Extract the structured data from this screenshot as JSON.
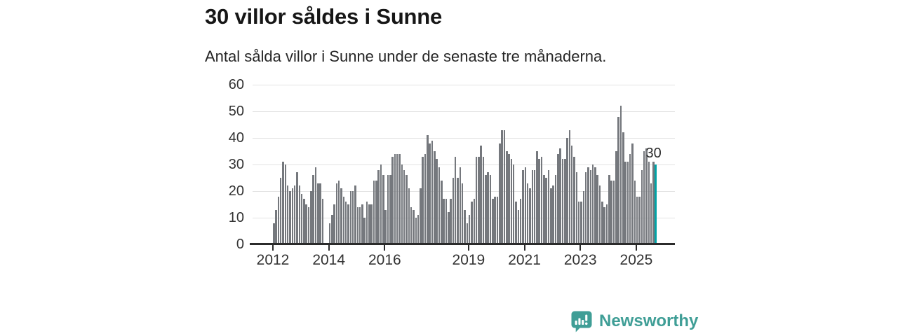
{
  "header": {
    "title": "30 villor såldes i Sunne",
    "subtitle": "Antal sålda villor i Sunne under de senaste tre månaderna."
  },
  "chart_data": {
    "type": "bar",
    "title": "30 villor såldes i Sunne",
    "subtitle": "Antal sålda villor i Sunne under de senaste tre månaderna.",
    "x_start_year": 2012,
    "x_frequency": "monthly",
    "values": [
      8,
      13,
      18,
      25,
      31,
      30,
      22,
      20,
      21,
      22,
      27,
      22,
      19,
      17,
      15,
      14,
      20,
      26,
      29,
      23,
      23,
      17,
      0,
      0,
      8,
      11,
      15,
      23,
      24,
      21,
      18,
      16,
      15,
      20,
      20,
      22,
      14,
      14,
      15,
      10,
      16,
      15,
      15,
      24,
      24,
      28,
      30,
      26,
      13,
      26,
      26,
      33,
      34,
      34,
      34,
      30,
      28,
      26,
      21,
      14,
      13,
      10,
      11,
      21,
      33,
      34,
      41,
      38,
      39,
      35,
      32,
      29,
      24,
      17,
      17,
      12,
      17,
      25,
      33,
      25,
      29,
      23,
      13,
      8,
      11,
      16,
      17,
      33,
      33,
      37,
      33,
      26,
      27,
      26,
      17,
      18,
      18,
      38,
      43,
      43,
      35,
      34,
      32,
      30,
      16,
      13,
      17,
      28,
      29,
      23,
      21,
      28,
      28,
      35,
      32,
      33,
      26,
      25,
      28,
      21,
      22,
      26,
      34,
      36,
      32,
      32,
      40,
      43,
      37,
      33,
      27,
      16,
      16,
      20,
      27,
      29,
      28,
      30,
      29,
      26,
      22,
      16,
      14,
      15,
      26,
      24,
      24,
      35,
      48,
      52,
      42,
      31,
      31,
      34,
      38,
      24,
      18,
      18,
      28,
      35,
      36,
      31,
      23,
      31,
      30
    ],
    "ylim": [
      0,
      60
    ],
    "y_ticks": [
      0,
      10,
      20,
      30,
      40,
      50,
      60
    ],
    "x_tick_labels": [
      "2012",
      "2014",
      "2016",
      "2019",
      "2021",
      "2023",
      "2025"
    ],
    "x_tick_month_indices": [
      0,
      24,
      48,
      84,
      108,
      132,
      156
    ],
    "grid": true,
    "legend": "none",
    "highlight": {
      "index": 164,
      "value": 30,
      "label": "30",
      "color": "#00a3a6"
    },
    "colors": {
      "bar": "#75787d",
      "highlight": "#00a3a6",
      "axis": "#2b2b2b",
      "grid": "#e2e2e2",
      "tick_text": "#333333"
    }
  },
  "footer": {
    "brand_name": "Newsworthy",
    "brand_color": "#3f9e96",
    "brand_icon": "bar-chart-speech-bubble-icon"
  }
}
